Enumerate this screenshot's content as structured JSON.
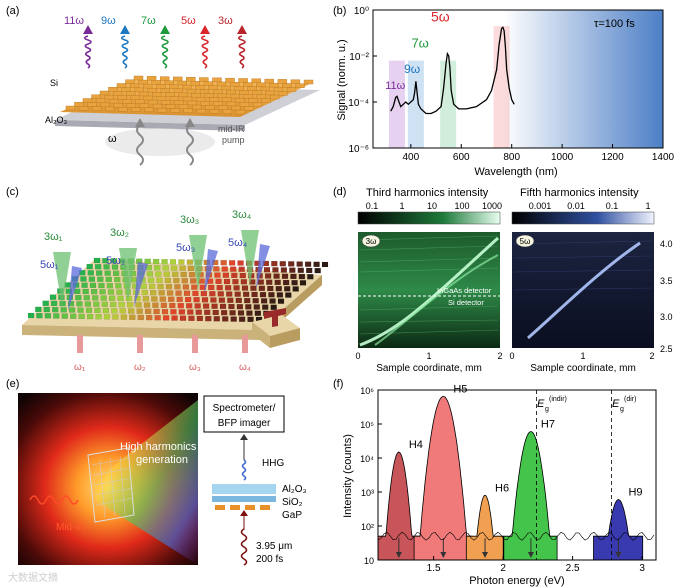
{
  "panels": {
    "a": {
      "letter": "(a)",
      "harmonics": [
        "11ω",
        "9ω",
        "7ω",
        "5ω",
        "3ω"
      ],
      "colors": [
        "#7a2a9a",
        "#1e78c0",
        "#1e9a3c",
        "#d8262a",
        "#b8242a"
      ],
      "si_label": "Si",
      "al2o3_label": "Al₂O₃",
      "omega_label": "ω",
      "pump_line1": "mid-IR",
      "pump_line2": "pump"
    },
    "b": {
      "letter": "(b)",
      "tau_label": "τ=100 fs",
      "peak_labels": [
        "11ω",
        "9ω",
        "7ω",
        "5ω"
      ]
    },
    "c": {
      "letter": "(c)",
      "harmonic_labels": [
        "3ω₁",
        "3ω₂",
        "3ω₃",
        "3ω₄"
      ],
      "fifth_labels": [
        "5ω₁",
        "5ω₂",
        "5ω₃",
        "5ω₄"
      ],
      "pump_labels": [
        "ω₁",
        "ω₂",
        "ω₃",
        "ω₄"
      ]
    },
    "d": {
      "letter": "(d)",
      "left_title": "Third harmonics intensity",
      "right_title": "Fifth harmonics intensity",
      "left_ticks": [
        "0.1",
        "1",
        "10",
        "100",
        "1000"
      ],
      "right_ticks": [
        "0.001",
        "0.01",
        "0.1",
        "1"
      ],
      "left_badge": "3ω",
      "right_badge": "5ω",
      "detector_top": "InGaAs detector",
      "detector_bottom": "Si detector",
      "x_ticks": [
        "0",
        "1",
        "2"
      ],
      "x_label": "Sample coordinate, mm",
      "y_ticks": [
        "4.0",
        "3.5",
        "3.0",
        "2.5"
      ]
    },
    "e": {
      "letter": "(e)",
      "hhg_line1": "High harmonics",
      "hhg_line2": "generation",
      "midir": "Mid-IR",
      "spec_line1": "Spectrometer/",
      "spec_line2": "BFP imager",
      "hhg": "HHG",
      "layer1": "Al₂O₃",
      "layer2": "SiO₂",
      "layer3": "GaP",
      "pulse_line1": "3.95 μm",
      "pulse_line2": "200 fs"
    },
    "f": {
      "letter": "(f)",
      "eg_indir": "(indir)",
      "eg_dir": "(dir)",
      "eg_symbol": "E",
      "eg_sub": "g"
    }
  },
  "watermark": "大数据文摘",
  "chart_data": [
    {
      "id": "b",
      "type": "line",
      "title": "",
      "xlabel": "Wavelength (nm)",
      "ylabel": "Signal (norm. u.)",
      "xlim": [
        250,
        1400
      ],
      "ylim_log10": [
        -6,
        0
      ],
      "yscale": "log",
      "x_ticks": [
        400,
        600,
        800,
        1000,
        1200,
        1400
      ],
      "y_ticks": [
        "10⁻⁶",
        "10⁻⁴",
        "10⁻²",
        "10⁰"
      ],
      "series": [
        {
          "name": "spectrum",
          "x": [
            320,
            330,
            340,
            345,
            350,
            360,
            370,
            380,
            390,
            400,
            410,
            415,
            420,
            425,
            430,
            440,
            460,
            480,
            500,
            520,
            530,
            540,
            545,
            550,
            555,
            560,
            570,
            590,
            620,
            660,
            700,
            720,
            740,
            750,
            760,
            765,
            770,
            775,
            780,
            790,
            800,
            810
          ],
          "y_log10": [
            -4.4,
            -4.2,
            -3.8,
            -3.75,
            -3.9,
            -4.2,
            -4.1,
            -4.0,
            -4.1,
            -4.0,
            -3.9,
            -3.6,
            -3.1,
            -3.6,
            -4.1,
            -4.3,
            -4.5,
            -4.5,
            -4.4,
            -4.2,
            -3.4,
            -2.3,
            -1.9,
            -2.0,
            -2.5,
            -3.5,
            -4.1,
            -4.3,
            -4.3,
            -4.2,
            -3.9,
            -3.5,
            -2.6,
            -1.5,
            -0.8,
            -0.75,
            -0.9,
            -1.6,
            -2.6,
            -3.4,
            -3.9,
            -4.1
          ]
        }
      ],
      "peak_wavelengths": [
        345,
        420,
        548,
        760
      ],
      "annotation": "τ=100 fs"
    },
    {
      "id": "f",
      "type": "area",
      "title": "",
      "xlabel": "Photon energy (eV)",
      "ylabel": "Intensity (counts)",
      "xlim": [
        1.1,
        3.1
      ],
      "ylim_log10": [
        1,
        6
      ],
      "yscale": "log",
      "x_ticks": [
        1.5,
        2.0,
        2.5,
        3.0
      ],
      "y_ticks": [
        "10",
        "10²",
        "10³",
        "10⁴",
        "10⁵",
        "10⁶"
      ],
      "series": [
        {
          "name": "H4",
          "center": 1.25,
          "peak": 15000,
          "width": 0.05,
          "color": "#c8555a"
        },
        {
          "name": "H5",
          "center": 1.57,
          "peak": 650000,
          "width": 0.07,
          "color": "#f07a7a"
        },
        {
          "name": "H6",
          "center": 1.87,
          "peak": 800,
          "width": 0.045,
          "color": "#f0a050"
        },
        {
          "name": "H7",
          "center": 2.2,
          "peak": 60000,
          "width": 0.065,
          "color": "#44c44a"
        },
        {
          "name": "H9",
          "center": 2.83,
          "peak": 600,
          "width": 0.06,
          "color": "#3a3ab0"
        }
      ],
      "vertical_lines": [
        {
          "x": 2.24,
          "label": "Eg (indir)"
        },
        {
          "x": 2.78,
          "label": "Eg (dir)"
        }
      ]
    }
  ]
}
